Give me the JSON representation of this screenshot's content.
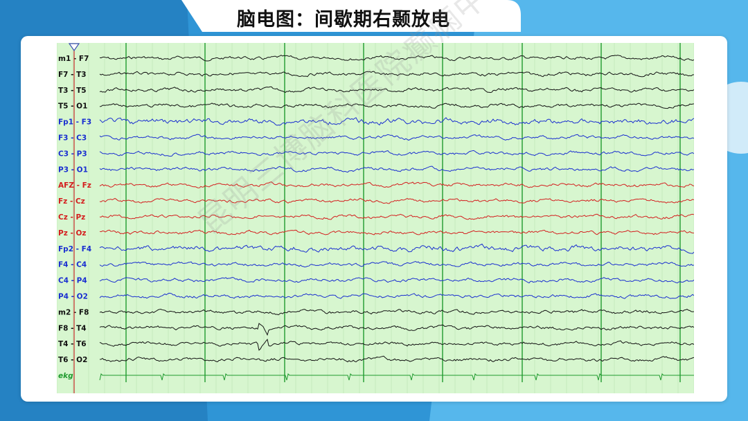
{
  "slide": {
    "title": "脑电图：间歇期右颞放电",
    "watermark": "昆明三博脑科医院癫痫中心"
  },
  "colors": {
    "background_blue": "#2f95d6",
    "light_blue": "#56b7ec",
    "grid_background": "#d7f6cf",
    "second_line": "#1f9a2e",
    "cursor": "#c62828",
    "black_channel": "#111111",
    "blue_channel": "#1a2fd0",
    "red_channel": "#d41e1e"
  },
  "eeg": {
    "channels": [
      {
        "label": "m1 - F7",
        "color": "black"
      },
      {
        "label": "F7 - T3",
        "color": "black"
      },
      {
        "label": "T3 - T5",
        "color": "black"
      },
      {
        "label": "T5 - O1",
        "color": "black"
      },
      {
        "label": "Fp1 - F3",
        "color": "blue"
      },
      {
        "label": "F3 - C3",
        "color": "blue"
      },
      {
        "label": "C3 - P3",
        "color": "blue"
      },
      {
        "label": "P3 - O1",
        "color": "blue"
      },
      {
        "label": "AFZ - Fz",
        "color": "red"
      },
      {
        "label": "Fz - Cz",
        "color": "red"
      },
      {
        "label": "Cz - Pz",
        "color": "red"
      },
      {
        "label": "Pz - Oz",
        "color": "red"
      },
      {
        "label": "Fp2 - F4",
        "color": "blue"
      },
      {
        "label": "F4 - C4",
        "color": "blue"
      },
      {
        "label": "C4 - P4",
        "color": "blue"
      },
      {
        "label": "P4 - O2",
        "color": "blue"
      },
      {
        "label": "m2 - F8",
        "color": "black"
      },
      {
        "label": "F8 - T4",
        "color": "black"
      },
      {
        "label": "T4 - T6",
        "color": "black"
      },
      {
        "label": "T6 - O2",
        "color": "black"
      },
      {
        "label": "ekg",
        "color": "green"
      }
    ]
  }
}
